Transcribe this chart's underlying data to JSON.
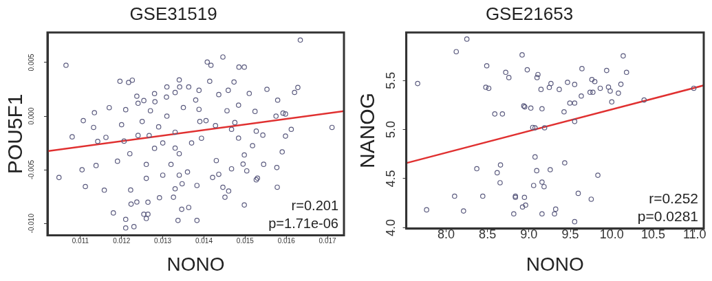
{
  "chart_data": [
    {
      "type": "scatter",
      "title": "GSE31519",
      "xlabel": "NONO",
      "ylabel": "POU5F1",
      "xlim": [
        0.0102,
        0.0174
      ],
      "ylim": [
        -0.0111,
        0.0078
      ],
      "xticks": [
        0.011,
        0.012,
        0.013,
        0.014,
        0.015,
        0.016,
        0.017
      ],
      "yticks": [
        0.005,
        {
          "value": 0,
          "label": "0.000"
        },
        -0.005,
        {
          "value": -0.01,
          "label": "-0.010"
        }
      ],
      "grid": false,
      "legend": false,
      "annotations": [
        "r=0.201",
        "p=1.71e-06"
      ],
      "series": [
        {
          "color": "#5a5a7e",
          "marker": "circle",
          "x": [
            0.01065,
            0.01048,
            0.0108,
            0.01104,
            0.01112,
            0.01107,
            0.01134,
            0.01132,
            0.01138,
            0.01158,
            0.01142,
            0.01162,
            0.0117,
            0.0118,
            0.01196,
            0.01217,
            0.01226,
            0.0121,
            0.0121,
            0.0123,
            0.01206,
            0.01222,
            0.01223,
            0.01237,
            0.01254,
            0.0126,
            0.01264,
            0.01264,
            0.01267,
            0.01237,
            0.01254,
            0.01281,
            0.01292,
            0.01309,
            0.0131,
            0.01326,
            0.0134,
            0.01341,
            0.01347,
            0.01363,
            0.01383,
            0.01383,
            0.0125,
            0.0127,
            0.0129,
            0.0131,
            0.0133,
            0.0135,
            0.0128,
            0.0132,
            0.0126,
            0.0134,
            0.013,
            0.0124,
            0.0122,
            0.012,
            0.0119,
            0.0121,
            0.0136,
            0.0137,
            0.0138,
            0.0139,
            0.0124,
            0.0128,
            0.0133,
            0.0126,
            0.013,
            0.0134,
            0.01634,
            0.01446,
            0.01408,
            0.01417,
            0.01485,
            0.01498,
            0.01414,
            0.01473,
            0.01628,
            0.0162,
            0.01553,
            0.01579,
            0.0151,
            0.01592,
            0.01598,
            0.01575,
            0.01711,
            0.01612,
            0.01598,
            0.0159,
            0.01577,
            0.01578,
            0.01545,
            0.01527,
            0.0153,
            0.01498,
            0.01504,
            0.01495,
            0.01543,
            0.01527,
            0.01518,
            0.01498,
            0.01337,
            0.01346,
            0.01363,
            0.0133,
            0.01451,
            0.01446,
            0.0146,
            0.01436,
            0.01467,
            0.01421,
            0.01484,
            0.01467,
            0.01475,
            0.01524,
            0.01456,
            0.01484,
            0.01436,
            0.01459,
            0.01428,
            0.01394,
            0.01388,
            0.01405,
            0.0133,
            0.01388,
            0.0143
          ],
          "values": [
            0.00474,
            -0.00572,
            -0.00193,
            -0.005,
            -0.00656,
            -0.00042,
            0.00032,
            -0.00105,
            -0.0046,
            -0.0069,
            -0.00235,
            -0.00198,
            0.00079,
            -0.00902,
            0.00325,
            0.00314,
            0.00335,
            -0.00962,
            -0.01042,
            -0.0103,
            -0.00233,
            -0.00688,
            -0.0082,
            -0.008,
            -0.00914,
            -0.00954,
            -0.00914,
            -0.00802,
            -0.00181,
            0.00186,
            0.00145,
            0.00134,
            -0.0076,
            0.00178,
            0.00272,
            -0.00756,
            0.00338,
            0.00272,
            -0.0063,
            0.00272,
            -0.00972,
            -0.00646,
            -0.0005,
            0.0005,
            -0.001,
            0,
            -0.0015,
            0.0008,
            -0.003,
            -0.0045,
            -0.0045,
            -0.0035,
            -0.0025,
            -0.0018,
            -0.0035,
            -0.0008,
            -0.0042,
            0.0006,
            -0.0052,
            -0.0025,
            0.0015,
            -0.0005,
            0.0012,
            0.0021,
            0.0022,
            -0.0058,
            -0.0055,
            -0.0055,
            0.00709,
            0.00551,
            0.00504,
            0.00474,
            0.00457,
            0.00457,
            0.00325,
            0.00318,
            0.00267,
            0.00221,
            0.0025,
            0.00149,
            0.00211,
            0.00028,
            0.0002,
            0,
            -0.00105,
            -0.00123,
            -0.00186,
            -0.00333,
            -0.00479,
            -0.00662,
            -0.00449,
            -0.00593,
            -0.00578,
            -0.00828,
            -0.0051,
            -0.00447,
            -0.00177,
            -0.0014,
            -0.00275,
            -0.00362,
            -0.00972,
            -0.00868,
            -0.00851,
            -0.00677,
            -0.00756,
            -0.00663,
            -0.00698,
            -0.00542,
            -0.00491,
            -0.00572,
            -0.00205,
            -0.00123,
            -0.0006,
            0.00044,
            0.0005,
            0.00102,
            0.00201,
            0.00241,
            -0.00088,
            -0.00206,
            0.00063,
            -0.00042,
            -0.00298,
            0.00241,
            -0.00414
          ]
        },
        {
          "type": "line",
          "color": "#e03030",
          "x": [
            0.0102,
            0.0174
          ],
          "values": [
            -0.00326,
            0.00046
          ]
        }
      ]
    },
    {
      "type": "scatter",
      "title": "GSE21653",
      "xlabel": "NONO",
      "ylabel": "NANOG",
      "xlim": [
        7.52,
        11.11
      ],
      "ylim": [
        3.99,
        5.99
      ],
      "xticks": [
        {
          "value": 8,
          "label": "8.0"
        },
        8.5,
        {
          "value": 9,
          "label": "9.0"
        },
        9.5,
        {
          "value": 10,
          "label": "10.0"
        },
        10.5,
        {
          "value": 11,
          "label": "11.0"
        }
      ],
      "yticks": [
        {
          "value": 4,
          "label": "4.0"
        },
        4.5,
        {
          "value": 5,
          "label": "5.0"
        },
        5.5
      ],
      "grid": false,
      "legend": false,
      "annotations": [
        "r=0.252",
        "p=0.0281"
      ],
      "series": [
        {
          "color": "#5a5a7e",
          "marker": "circle",
          "x": [
            7.657,
            7.765,
            8.123,
            8.251,
            8.103,
            8.211,
            8.371,
            8.443,
            8.48,
            8.515,
            8.491,
            8.588,
            8.68,
            8.72,
            8.758,
            8.657,
            8.617,
            8.652,
            8.817,
            8.837,
            8.837,
            8.918,
            8.938,
            8.95,
            8.98,
            8.946,
            8.96,
            8.923,
            9.023,
            9.046,
            9.074,
            9.074,
            9.094,
            9.057,
            9.098,
            9.109,
            9.146,
            9.158,
            9.158,
            9.183,
            9.158,
            9.189,
            9.257,
            9.246,
            9.266,
            9.309,
            9.323,
            9.366,
            9.424,
            9.432,
            9.466,
            9.494,
            9.552,
            9.552,
            9.552,
            9.552,
            9.595,
            9.632,
            9.64,
            9.738,
            9.772,
            9.752,
            9.76,
            9.795,
            9.832,
            9.861,
            9.938,
            9.96,
            9.981,
            10.0,
            10.08,
            10.11,
            10.138,
            10.178,
            10.39,
            10.99
          ],
          "values": [
            5.469,
            4.182,
            5.794,
            5.922,
            4.321,
            4.17,
            4.601,
            4.321,
            5.431,
            5.421,
            5.65,
            5.159,
            5.159,
            5.583,
            5.53,
            4.639,
            4.56,
            4.458,
            4.141,
            4.321,
            4.309,
            5.761,
            5.241,
            5.231,
            5.609,
            4.309,
            4.23,
            4.211,
            5.219,
            5.022,
            5.018,
            4.721,
            4.581,
            4.43,
            5.53,
            5.561,
            5.409,
            5.212,
            4.464,
            4.418,
            4.141,
            5.018,
            4.591,
            5.429,
            5.469,
            4.141,
            4.189,
            5.409,
            5.181,
            4.661,
            5.482,
            5.27,
            5.27,
            5.46,
            5.082,
            4.061,
            4.35,
            5.342,
            5.621,
            5.38,
            5.38,
            4.29,
            5.51,
            5.489,
            4.534,
            5.421,
            5.602,
            5.433,
            5.393,
            5.282,
            5.371,
            5.462,
            5.751,
            5.583,
            5.301,
            5.421
          ]
        },
        {
          "type": "line",
          "color": "#e03030",
          "x": [
            7.52,
            11.11
          ],
          "values": [
            4.658,
            5.45
          ]
        }
      ]
    }
  ]
}
